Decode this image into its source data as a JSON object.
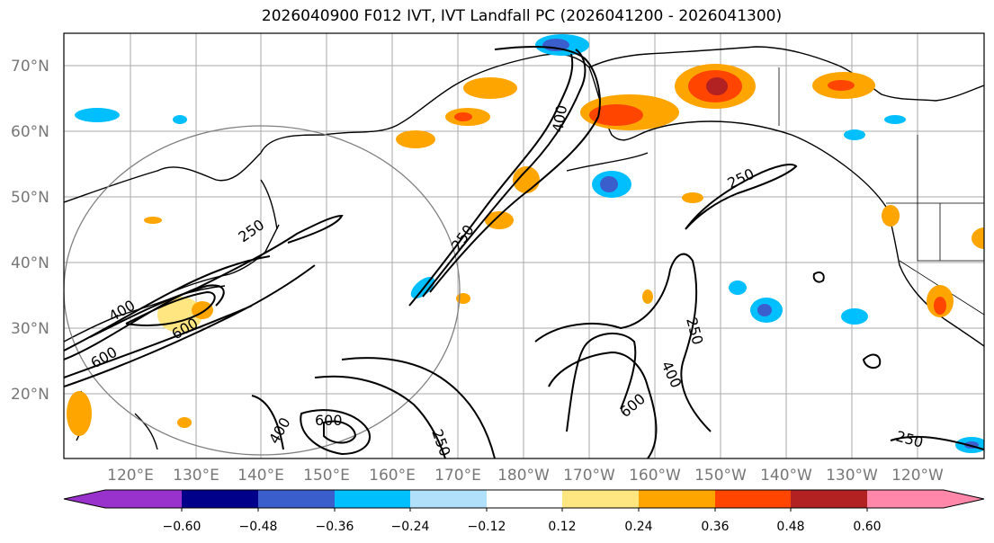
{
  "title": "2026040900 F012 IVT, IVT Landfall PC (2026041200 - 2026041300)",
  "map": {
    "lat_labels": [
      "70°N",
      "60°N",
      "50°N",
      "40°N",
      "30°N",
      "20°N"
    ],
    "lon_labels": [
      "120°E",
      "130°E",
      "140°E",
      "150°E",
      "160°E",
      "170°E",
      "180°W",
      "170°W",
      "160°W",
      "150°W",
      "140°W",
      "130°W",
      "120°W"
    ],
    "contour_labels": [
      "250",
      "400",
      "600",
      "250",
      "400",
      "600",
      "600",
      "250",
      "400",
      "600",
      "400",
      "250",
      "250",
      "250"
    ]
  },
  "colorbar": {
    "ticks": [
      "−0.60",
      "−0.48",
      "−0.36",
      "−0.24",
      "−0.12",
      "0.12",
      "0.24",
      "0.36",
      "0.48",
      "0.60"
    ],
    "colors": [
      "#9932cc",
      "#00008b",
      "#3a5fcd",
      "#00bfff",
      "#b0e0fa",
      "#ffffff",
      "#ffe680",
      "#ffa500",
      "#ff4500",
      "#b22222",
      "#ff88aa"
    ]
  }
}
